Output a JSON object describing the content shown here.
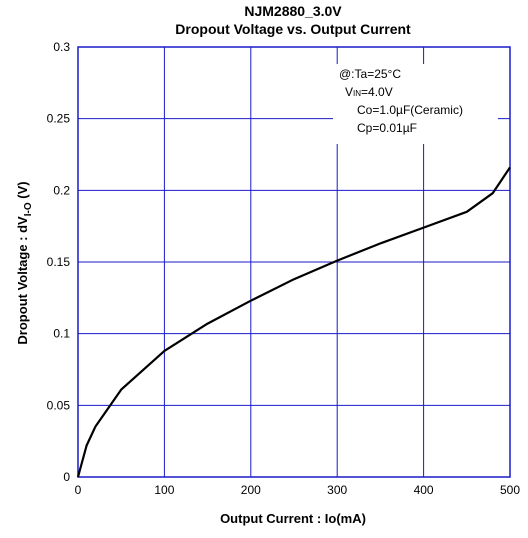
{
  "chart_data": {
    "type": "line",
    "title": "NJM2880_3.0V",
    "subtitle": "Dropout Voltage vs. Output Current",
    "xlabel": "Output Current : Io(mA)",
    "ylabel": "Dropout Voltage : dV",
    "ylabel_sub": "I-O",
    "ylabel_unit": " (V)",
    "xlim": [
      0,
      500
    ],
    "ylim": [
      0,
      0.3
    ],
    "grid": true,
    "x_ticks": [
      0,
      100,
      200,
      300,
      400,
      500
    ],
    "y_ticks": [
      0,
      0.05,
      0.1,
      0.15,
      0.2,
      0.25,
      0.3
    ],
    "x_tick_labels": [
      "0",
      "100",
      "200",
      "300",
      "400",
      "500"
    ],
    "y_tick_labels": [
      "0",
      "0.05",
      "0.1",
      "0.15",
      "0.2",
      "0.25",
      "0.3"
    ],
    "annotation": {
      "line1": "@:Ta=25°C",
      "line2_main": "V",
      "line2_sub": "IN",
      "line2_rest": "=4.0V",
      "line3": "Co=1.0µF(Ceramic)",
      "line4": "Cp=0.01µF"
    },
    "series": [
      {
        "x": [
          0,
          10,
          20,
          50,
          100,
          150,
          200,
          250,
          300,
          350,
          400,
          450,
          480,
          500
        ],
        "y": [
          0,
          0.022,
          0.035,
          0.061,
          0.088,
          0.107,
          0.123,
          0.138,
          0.151,
          0.163,
          0.174,
          0.185,
          0.198,
          0.216
        ]
      }
    ],
    "colors": {
      "grid": "#1a1acc",
      "frame": "#1a1acc",
      "line": "#000000"
    }
  }
}
